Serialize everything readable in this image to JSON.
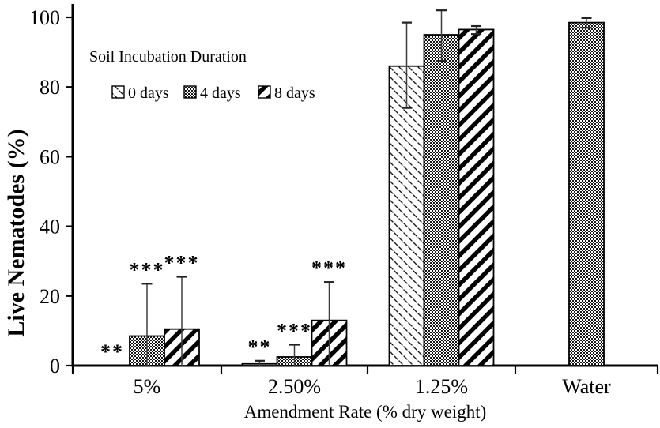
{
  "figure": {
    "background": "#ffffff",
    "axis_color": "#000000",
    "error_bar_color": "#3d3d3d"
  },
  "chart_data": {
    "type": "bar",
    "title": "",
    "ylabel": "Live Nematodes (%)",
    "xlabel": "Amendment Rate (% dry weight)",
    "ylim": [
      0,
      104
    ],
    "yticks": [
      0,
      20,
      40,
      60,
      80,
      100
    ],
    "grid": false,
    "legend": {
      "title": "Soil Incubation Duration",
      "position": "upper-left-inside",
      "entries": [
        {
          "label": "0 days",
          "pattern": "diagonal-dash"
        },
        {
          "label": "4 days",
          "pattern": "dot-grid"
        },
        {
          "label": "8 days",
          "pattern": "diagonal-stripe"
        }
      ]
    },
    "categories": [
      "5%",
      "2.50%",
      "1.25%",
      "Water"
    ],
    "groups": [
      {
        "label": "5%",
        "bars": [
          {
            "series": "0 days",
            "value": 0,
            "err_low": null,
            "err_high": null,
            "sig": "**"
          },
          {
            "series": "4 days",
            "value": 8.5,
            "err_low": null,
            "err_high": 23.5,
            "sig": "***"
          },
          {
            "series": "8 days",
            "value": 10.5,
            "err_low": null,
            "err_high": 25.5,
            "sig": "***"
          }
        ]
      },
      {
        "label": "2.50%",
        "bars": [
          {
            "series": "0 days",
            "value": 0.5,
            "err_low": null,
            "err_high": 1.4,
            "sig": "**"
          },
          {
            "series": "4 days",
            "value": 2.5,
            "err_low": null,
            "err_high": 6,
            "sig": "***"
          },
          {
            "series": "8 days",
            "value": 13,
            "err_low": null,
            "err_high": 24,
            "sig": "***"
          }
        ]
      },
      {
        "label": "1.25%",
        "bars": [
          {
            "series": "0 days",
            "value": 86,
            "err_low": 74,
            "err_high": 98.5,
            "sig": ""
          },
          {
            "series": "4 days",
            "value": 95,
            "err_low": 87.5,
            "err_high": 102,
            "sig": ""
          },
          {
            "series": "8 days",
            "value": 96.5,
            "err_low": 95.2,
            "err_high": 97.5,
            "sig": ""
          }
        ]
      },
      {
        "label": "Water",
        "bars": [
          {
            "series": "4 days",
            "value": 98.5,
            "err_low": 97,
            "err_high": 99.8,
            "sig": ""
          }
        ]
      }
    ]
  }
}
